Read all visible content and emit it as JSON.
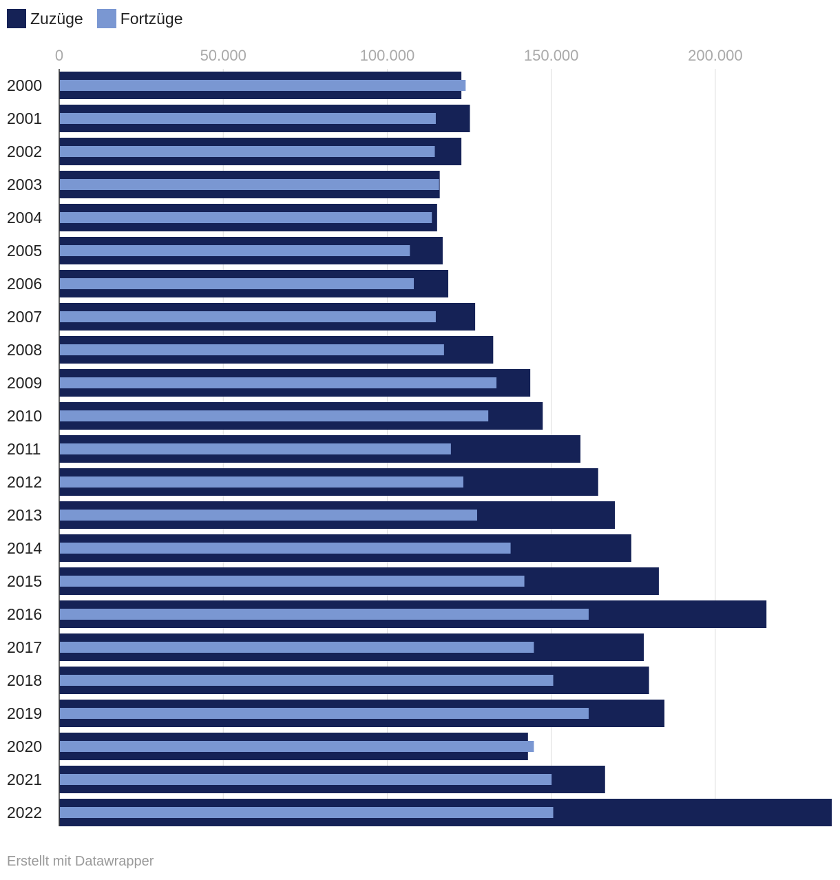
{
  "legend": {
    "items": [
      {
        "label": "Zuzüge",
        "color": "#152256"
      },
      {
        "label": "Fortzüge",
        "color": "#7a97d2"
      }
    ]
  },
  "footer": {
    "credit": "Erstellt mit Datawrapper"
  },
  "chart_data": {
    "type": "bar",
    "orientation": "horizontal",
    "categories": [
      "2000",
      "2001",
      "2002",
      "2003",
      "2004",
      "2005",
      "2006",
      "2007",
      "2008",
      "2009",
      "2010",
      "2011",
      "2012",
      "2013",
      "2014",
      "2015",
      "2016",
      "2017",
      "2018",
      "2019",
      "2020",
      "2021",
      "2022"
    ],
    "series": [
      {
        "name": "Zuzüge",
        "color": "#152256",
        "values": [
          122600,
          125200,
          122600,
          116000,
          115200,
          116900,
          118600,
          126800,
          132300,
          143600,
          147400,
          158900,
          164300,
          169400,
          174400,
          182800,
          215600,
          178200,
          179800,
          184500,
          142900,
          166400,
          235500
        ]
      },
      {
        "name": "Fortzüge",
        "color": "#7a97d2",
        "values": [
          123900,
          114800,
          114500,
          115800,
          113600,
          106900,
          108100,
          114800,
          117300,
          133300,
          130800,
          119400,
          123200,
          127400,
          137600,
          141800,
          161400,
          144700,
          150600,
          161400,
          144700,
          150100,
          150600
        ]
      }
    ],
    "x_ticks": [
      0,
      50000,
      100000,
      150000,
      200000
    ],
    "x_tick_labels": [
      "0",
      "50.000",
      "100.000",
      "150.000",
      "200.000"
    ],
    "xlim": [
      0,
      235500
    ],
    "grid": true,
    "legend_position": "top-left"
  }
}
